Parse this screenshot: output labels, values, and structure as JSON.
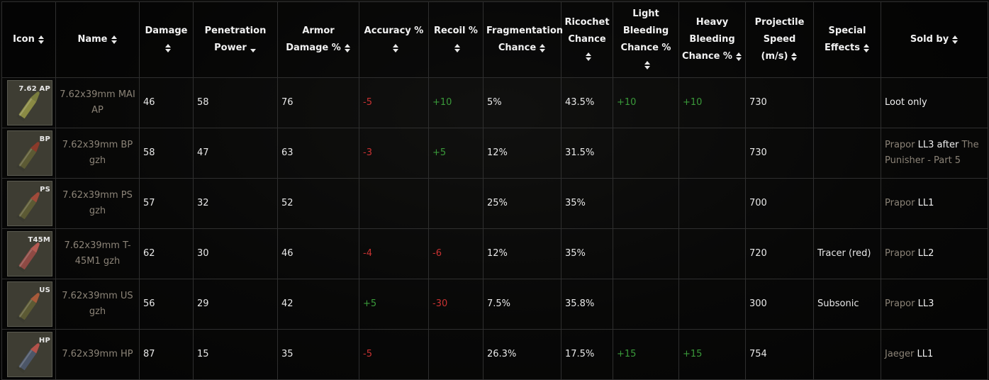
{
  "table": {
    "headers": [
      {
        "label": "Icon",
        "sort": "both"
      },
      {
        "label": "Name",
        "sort": "both"
      },
      {
        "label": "Damage",
        "sort": "both"
      },
      {
        "label": "Penetration Power",
        "sort": "desc"
      },
      {
        "label": "Armor Damage %",
        "sort": "both"
      },
      {
        "label": "Accuracy %",
        "sort": "both"
      },
      {
        "label": "Recoil %",
        "sort": "both"
      },
      {
        "label": "Fragmentation Chance",
        "sort": "both"
      },
      {
        "label": "Ricochet Chance",
        "sort": "both"
      },
      {
        "label": "Light Bleeding Chance %",
        "sort": "both"
      },
      {
        "label": "Heavy Bleeding Chance %",
        "sort": "both"
      },
      {
        "label": "Projectile Speed (m/s)",
        "sort": "both"
      },
      {
        "label": "Special Effects",
        "sort": "both"
      },
      {
        "label": "Sold by",
        "sort": "both"
      }
    ],
    "rows": [
      {
        "tag": "7.62 AP",
        "tip": "#7a7d3e",
        "body": "#8a8a44",
        "name": "7.62x39mm MAI AP",
        "damage": "46",
        "pen": "58",
        "armor": "76",
        "accuracy": "-5",
        "recoil": "+10",
        "frag": "5%",
        "ricochet": "43.5%",
        "light": "+10",
        "heavy": "+10",
        "speed": "730",
        "effects": "",
        "sold_a": "Loot only",
        "sold_b": "",
        "sold_c": "",
        "sold_d": ""
      },
      {
        "tag": "BP",
        "tip": "#8a3a2a",
        "body": "#5c5a34",
        "name": "7.62x39mm BP gzh",
        "damage": "58",
        "pen": "47",
        "armor": "63",
        "accuracy": "-3",
        "recoil": "+5",
        "frag": "12%",
        "ricochet": "31.5%",
        "light": "",
        "heavy": "",
        "speed": "730",
        "effects": "",
        "sold_a": "Prapor",
        "sold_b": "LL3",
        "sold_c": "after",
        "sold_d": "The Punisher - Part 5"
      },
      {
        "tag": "PS",
        "tip": "#a04a3a",
        "body": "#5c5a34",
        "name": "7.62x39mm PS gzh",
        "damage": "57",
        "pen": "32",
        "armor": "52",
        "accuracy": "",
        "recoil": "",
        "frag": "25%",
        "ricochet": "35%",
        "light": "",
        "heavy": "",
        "speed": "700",
        "effects": "",
        "sold_a": "Prapor",
        "sold_b": "LL1",
        "sold_c": "",
        "sold_d": ""
      },
      {
        "tag": "T45M",
        "tip": "#b35a52",
        "body": "#8e4a44",
        "name": "7.62x39mm T-45M1 gzh",
        "damage": "62",
        "pen": "30",
        "armor": "46",
        "accuracy": "-4",
        "recoil": "-6",
        "frag": "12%",
        "ricochet": "35%",
        "light": "",
        "heavy": "",
        "speed": "720",
        "effects": "Tracer (red)",
        "sold_a": "Prapor",
        "sold_b": "LL2",
        "sold_c": "",
        "sold_d": ""
      },
      {
        "tag": "US",
        "tip": "#a85a3a",
        "body": "#5c5a34",
        "name": "7.62x39mm US gzh",
        "damage": "56",
        "pen": "29",
        "armor": "42",
        "accuracy": "+5",
        "recoil": "-30",
        "frag": "7.5%",
        "ricochet": "35.8%",
        "light": "",
        "heavy": "",
        "speed": "300",
        "effects": "Subsonic",
        "sold_a": "Prapor",
        "sold_b": "LL3",
        "sold_c": "",
        "sold_d": ""
      },
      {
        "tag": "HP",
        "tip": "#b3524a",
        "body": "#4c5668",
        "name": "7.62x39mm HP",
        "damage": "87",
        "pen": "15",
        "armor": "35",
        "accuracy": "-5",
        "recoil": "",
        "frag": "26.3%",
        "ricochet": "17.5%",
        "light": "+15",
        "heavy": "+15",
        "speed": "754",
        "effects": "",
        "sold_a": "Jaeger",
        "sold_b": "LL1",
        "sold_c": "",
        "sold_d": ""
      }
    ]
  },
  "colors": {
    "negative": "#c83232",
    "positive": "#3a9a3a",
    "muted": "#8b8377"
  },
  "icons": {
    "sort": "sort-arrows-icon"
  }
}
